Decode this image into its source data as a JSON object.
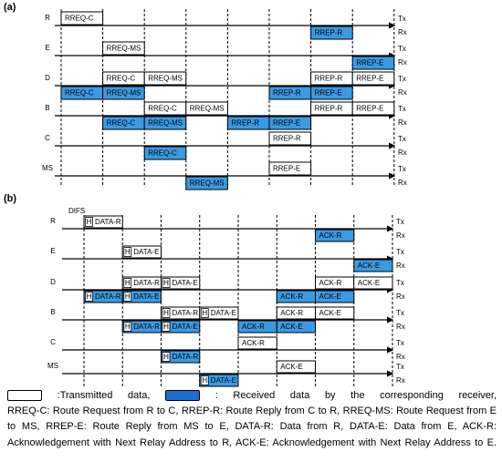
{
  "tx_label": "Tx",
  "rx_label": "Rx",
  "panels": [
    {
      "label": "(a)",
      "nodes": [
        {
          "name": "R",
          "tx": [
            "RREQ-C",
            null,
            null,
            null,
            null,
            null,
            null,
            null
          ],
          "rx": [
            null,
            null,
            null,
            null,
            null,
            null,
            "RREP-R",
            null
          ]
        },
        {
          "name": "E",
          "tx": [
            null,
            "RREQ-MS",
            null,
            null,
            null,
            null,
            null,
            null
          ],
          "rx": [
            null,
            null,
            null,
            null,
            null,
            null,
            null,
            "RREP-E"
          ]
        },
        {
          "name": "D",
          "tx": [
            null,
            "RREQ-C",
            "RREQ-MS",
            null,
            null,
            null,
            "RREP-R",
            "RREP-E"
          ],
          "rx": [
            "RREQ-C",
            "RREQ-MS",
            null,
            null,
            null,
            "RREP-R",
            "RREP-E",
            null
          ]
        },
        {
          "name": "B",
          "tx": [
            null,
            null,
            "RREQ-C",
            "RREQ-MS",
            null,
            null,
            "RREP-R",
            "RREP-E"
          ],
          "rx": [
            null,
            "RREQ-C",
            "RREQ-MS",
            null,
            "RREP-R",
            "RREP-E",
            null,
            null
          ]
        },
        {
          "name": "C",
          "tx": [
            null,
            null,
            null,
            null,
            null,
            "RREP-R",
            null,
            null
          ],
          "rx": [
            null,
            null,
            "RREQ-C",
            null,
            null,
            null,
            null,
            null
          ]
        },
        {
          "name": "MS",
          "tx": [
            null,
            null,
            null,
            null,
            null,
            "RREP-E",
            null,
            null
          ],
          "rx": [
            null,
            null,
            null,
            "RREQ-MS",
            null,
            null,
            null,
            null
          ]
        }
      ]
    },
    {
      "label": "(b)",
      "note": "DIFS",
      "header": "H",
      "nodes": [
        {
          "name": "R",
          "tx": [
            {
              "h": true,
              "text": "DATA-R"
            },
            null,
            null,
            null,
            null,
            null,
            null,
            null
          ],
          "rx": [
            null,
            null,
            null,
            null,
            null,
            null,
            {
              "h": false,
              "text": "ACK-R"
            },
            null
          ]
        },
        {
          "name": "E",
          "tx": [
            null,
            {
              "h": true,
              "text": "DATA-E"
            },
            null,
            null,
            null,
            null,
            null,
            null
          ],
          "rx": [
            null,
            null,
            null,
            null,
            null,
            null,
            null,
            {
              "h": false,
              "text": "ACK-E"
            }
          ]
        },
        {
          "name": "D",
          "tx": [
            null,
            {
              "h": true,
              "text": "DATA-R"
            },
            {
              "h": true,
              "text": "DATA-E"
            },
            null,
            null,
            null,
            {
              "h": false,
              "text": "ACK-R"
            },
            {
              "h": false,
              "text": "ACK-E"
            }
          ],
          "rx": [
            {
              "h": true,
              "text": "DATA-R"
            },
            {
              "h": true,
              "text": "DATA-E"
            },
            null,
            null,
            null,
            {
              "h": false,
              "text": "ACK-R"
            },
            {
              "h": false,
              "text": "ACK-E"
            },
            null
          ]
        },
        {
          "name": "B",
          "tx": [
            null,
            null,
            {
              "h": true,
              "text": "DATA-R"
            },
            {
              "h": true,
              "text": "DATA-E"
            },
            null,
            {
              "h": false,
              "text": "ACK-R"
            },
            {
              "h": false,
              "text": "ACK-E"
            },
            null
          ],
          "rx": [
            null,
            {
              "h": true,
              "text": "DATA-R"
            },
            {
              "h": true,
              "text": "DATA-E"
            },
            null,
            {
              "h": false,
              "text": "ACK-R"
            },
            {
              "h": false,
              "text": "ACK-E"
            },
            null,
            null
          ]
        },
        {
          "name": "C",
          "tx": [
            null,
            null,
            null,
            null,
            {
              "h": false,
              "text": "ACK-R"
            },
            null,
            null,
            null
          ],
          "rx": [
            null,
            null,
            {
              "h": true,
              "text": "DATA-R"
            },
            null,
            null,
            null,
            null,
            null
          ]
        },
        {
          "name": "MS",
          "tx": [
            null,
            null,
            null,
            null,
            null,
            {
              "h": false,
              "text": "ACK-E"
            },
            null,
            null
          ],
          "rx": [
            null,
            null,
            null,
            {
              "h": true,
              "text": "DATA-E"
            },
            null,
            null,
            null,
            null
          ]
        }
      ]
    }
  ],
  "legend": {
    "transmitted": ":Transmitted data,",
    "received": ": Received data by the corresponding receiver,",
    "description": "RREQ-C: Route Request from R to C, RREP-R: Route Reply from C to R, RREQ-MS: Route Request from E to MS, RREP-E: Route Reply from MS to E, DATA-R: Data from R, DATA-E: Data from E, ACK-R: Acknowledgement with Next Relay Address to R, ACK-E: Acknowledgement with Next Relay Address to E."
  }
}
